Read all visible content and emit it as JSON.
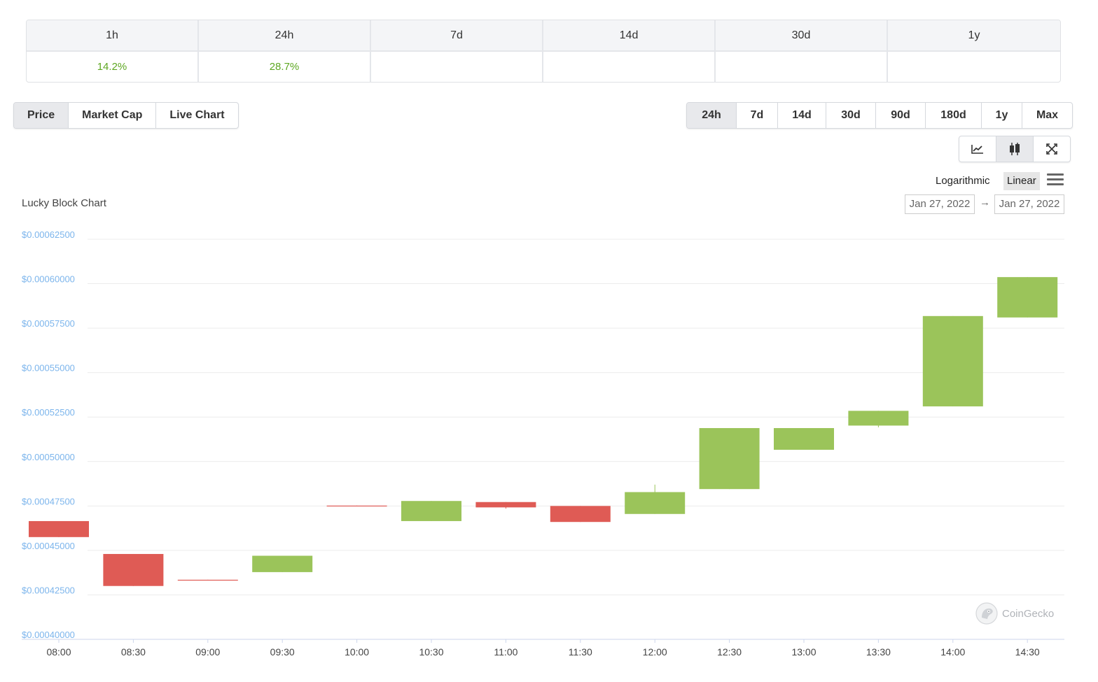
{
  "change_table": {
    "headers": [
      "1h",
      "24h",
      "7d",
      "14d",
      "30d",
      "1y"
    ],
    "values": [
      "14.2%",
      "28.7%",
      "",
      "",
      "",
      ""
    ]
  },
  "chart_type_tabs": [
    {
      "label": "Price",
      "active": true
    },
    {
      "label": "Market Cap",
      "active": false
    },
    {
      "label": "Live Chart",
      "active": false
    }
  ],
  "range_tabs": [
    {
      "label": "24h",
      "active": true
    },
    {
      "label": "7d",
      "active": false
    },
    {
      "label": "14d",
      "active": false
    },
    {
      "label": "30d",
      "active": false
    },
    {
      "label": "90d",
      "active": false
    },
    {
      "label": "180d",
      "active": false
    },
    {
      "label": "1y",
      "active": false
    },
    {
      "label": "Max",
      "active": false
    }
  ],
  "view_buttons": [
    {
      "icon": "line-chart-icon",
      "active": false
    },
    {
      "icon": "candlestick-icon",
      "active": true
    },
    {
      "icon": "expand-icon",
      "active": false
    }
  ],
  "scale": {
    "logarithmic_label": "Logarithmic",
    "linear_label": "Linear",
    "selected": "Linear",
    "menu_icon": "hamburger-menu-icon"
  },
  "date_range": {
    "from": "Jan 27, 2022",
    "to": "Jan 27, 2022",
    "arrow": "→"
  },
  "watermark": {
    "text": "CoinGecko",
    "icon": "gecko-logo-icon"
  },
  "colors": {
    "up": "#9bc45a",
    "down": "#df5b55",
    "percent_up": "#5ea722",
    "axis_label": "#7cb5ec"
  },
  "chart_data": {
    "type": "candlestick",
    "title": "Lucky Block Chart",
    "xlabel": "",
    "ylabel": "",
    "ylim": [
      0.0004,
      0.000625
    ],
    "y_ticks": [
      0.0004,
      0.000425,
      0.00045,
      0.000475,
      0.0005,
      0.000525,
      0.00055,
      0.000575,
      0.0006,
      0.000625
    ],
    "y_tick_labels": [
      "$0.00040000",
      "$0.00042500",
      "$0.00045000",
      "$0.00047500",
      "$0.00050000",
      "$0.00052500",
      "$0.00055000",
      "$0.00057500",
      "$0.00060000",
      "$0.00062500"
    ],
    "x_tick_labels": [
      "08:00",
      "08:30",
      "09:00",
      "09:30",
      "10:00",
      "10:30",
      "11:00",
      "11:30",
      "12:00",
      "12:30",
      "13:00",
      "13:30",
      "14:00",
      "14:30"
    ],
    "grid": true,
    "candles": [
      {
        "time": "08:00",
        "open": 0.0004665,
        "close": 0.0004575,
        "high": 0.0004665,
        "low": 0.0004575
      },
      {
        "time": "08:30",
        "open": 0.000448,
        "close": 0.00043,
        "high": 0.000448,
        "low": 0.00043
      },
      {
        "time": "09:00",
        "open": 0.0004335,
        "close": 0.0004333,
        "high": 0.0004335,
        "low": 0.0004333
      },
      {
        "time": "09:30",
        "open": 0.0004378,
        "close": 0.000447,
        "high": 0.000447,
        "low": 0.0004378
      },
      {
        "time": "10:00",
        "open": 0.0004752,
        "close": 0.000475,
        "high": 0.0004752,
        "low": 0.000475
      },
      {
        "time": "10:30",
        "open": 0.0004665,
        "close": 0.0004778,
        "high": 0.0004778,
        "low": 0.0004665
      },
      {
        "time": "11:00",
        "open": 0.0004772,
        "close": 0.0004742,
        "high": 0.0004772,
        "low": 0.0004735
      },
      {
        "time": "11:30",
        "open": 0.000475,
        "close": 0.000466,
        "high": 0.000475,
        "low": 0.000466
      },
      {
        "time": "12:00",
        "open": 0.0004705,
        "close": 0.0004828,
        "high": 0.000487,
        "low": 0.0004705
      },
      {
        "time": "12:30",
        "open": 0.0004845,
        "close": 0.0005188,
        "high": 0.0005188,
        "low": 0.0004845
      },
      {
        "time": "13:00",
        "open": 0.0005066,
        "close": 0.0005188,
        "high": 0.0005188,
        "low": 0.0005066
      },
      {
        "time": "13:30",
        "open": 0.0005202,
        "close": 0.0005285,
        "high": 0.0005285,
        "low": 0.0005192
      },
      {
        "time": "14:00",
        "open": 0.000531,
        "close": 0.0005818,
        "high": 0.0005818,
        "low": 0.000531
      },
      {
        "time": "14:30",
        "open": 0.000581,
        "close": 0.0006037,
        "high": 0.0006037,
        "low": 0.000581
      }
    ]
  }
}
